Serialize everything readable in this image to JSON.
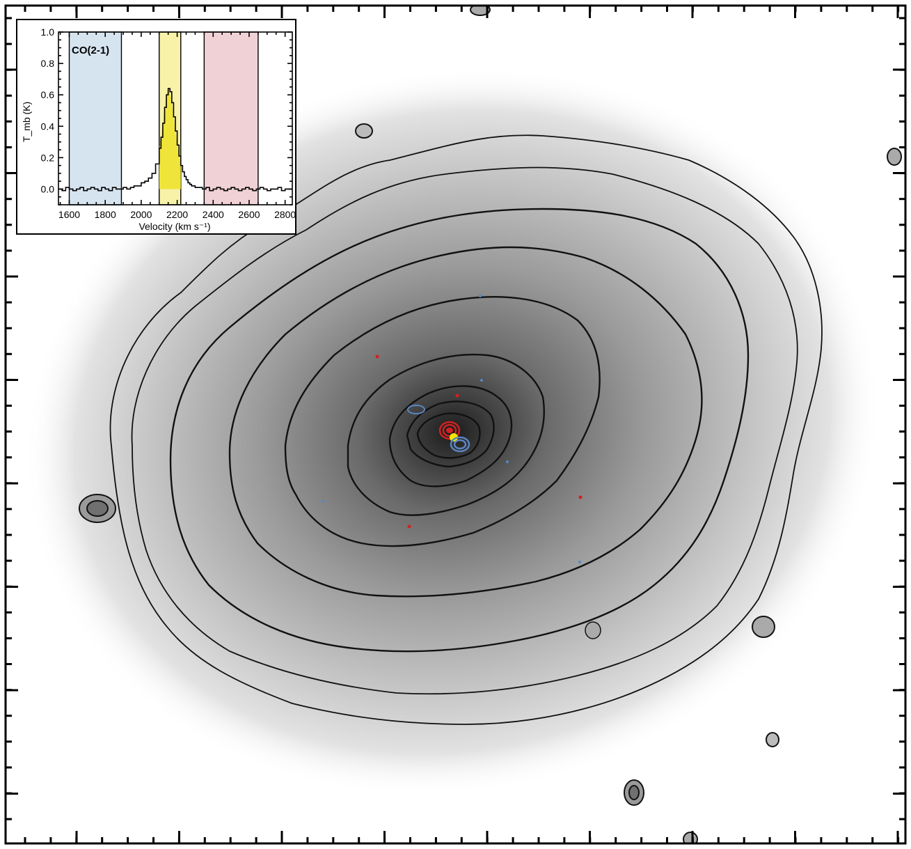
{
  "main_image": {
    "description_type": "galaxy image with isophote contours and CO velocity channel contours",
    "contour_color": "#111111",
    "background_gray": "#9a9a9a",
    "channel_colors": {
      "blue": "#5b86c4",
      "yellow": "#f2e600",
      "red": "#d42020"
    }
  },
  "chart_data": {
    "type": "line",
    "title": "CO(2-1)",
    "xlabel": "Velocity (km s⁻¹)",
    "ylabel": "T_mb (K)",
    "xlim": [
      1540,
      2840
    ],
    "ylim": [
      -0.1,
      1.0
    ],
    "xticks": [
      1600,
      1800,
      2000,
      2200,
      2400,
      2600,
      2800
    ],
    "yticks": [
      0.0,
      0.2,
      0.4,
      0.6,
      0.8,
      1.0
    ],
    "ytick_labels": [
      "0.0",
      "0.2",
      "0.4",
      "0.6",
      "0.8",
      "1.0"
    ],
    "bands": [
      {
        "name": "blue",
        "x0": 1600,
        "x1": 1890,
        "color": "#d6e4f0"
      },
      {
        "name": "yellow",
        "x0": 2100,
        "x1": 2220,
        "color": "#f7f2a8"
      },
      {
        "name": "red",
        "x0": 2350,
        "x1": 2650,
        "color": "#f0d2d6"
      }
    ],
    "fill": {
      "x0": 2100,
      "x1": 2220,
      "color": "#efe43a"
    },
    "spectrum": {
      "x": [
        1540,
        1560,
        1580,
        1600,
        1620,
        1640,
        1660,
        1680,
        1700,
        1720,
        1740,
        1760,
        1780,
        1800,
        1820,
        1840,
        1860,
        1880,
        1900,
        1920,
        1940,
        1960,
        1980,
        2000,
        2020,
        2040,
        2060,
        2080,
        2100,
        2110,
        2120,
        2130,
        2140,
        2150,
        2160,
        2170,
        2180,
        2190,
        2200,
        2210,
        2220,
        2230,
        2240,
        2250,
        2260,
        2270,
        2280,
        2290,
        2300,
        2320,
        2340,
        2360,
        2380,
        2400,
        2420,
        2440,
        2460,
        2480,
        2500,
        2520,
        2540,
        2560,
        2580,
        2600,
        2620,
        2640,
        2660,
        2680,
        2700,
        2720,
        2740,
        2760,
        2780,
        2800,
        2820,
        2840
      ],
      "y": [
        0.0,
        -0.01,
        0.01,
        0.0,
        -0.01,
        0.0,
        0.01,
        -0.01,
        0.0,
        0.01,
        0.0,
        -0.01,
        0.01,
        0.0,
        -0.01,
        0.01,
        0.0,
        0.0,
        0.01,
        0.0,
        0.01,
        0.02,
        0.02,
        0.04,
        0.05,
        0.07,
        0.1,
        0.16,
        0.26,
        0.33,
        0.42,
        0.52,
        0.6,
        0.64,
        0.62,
        0.55,
        0.46,
        0.37,
        0.28,
        0.21,
        0.15,
        0.11,
        0.08,
        0.06,
        0.04,
        0.03,
        0.02,
        0.02,
        0.01,
        0.01,
        0.0,
        0.01,
        -0.01,
        0.0,
        0.01,
        0.0,
        -0.01,
        0.0,
        0.01,
        0.0,
        -0.01,
        0.0,
        0.01,
        0.0,
        -0.01,
        0.0,
        0.01,
        0.0,
        -0.01,
        0.0,
        0.0,
        0.01,
        -0.01,
        0.0,
        0.0,
        0.0
      ]
    }
  }
}
